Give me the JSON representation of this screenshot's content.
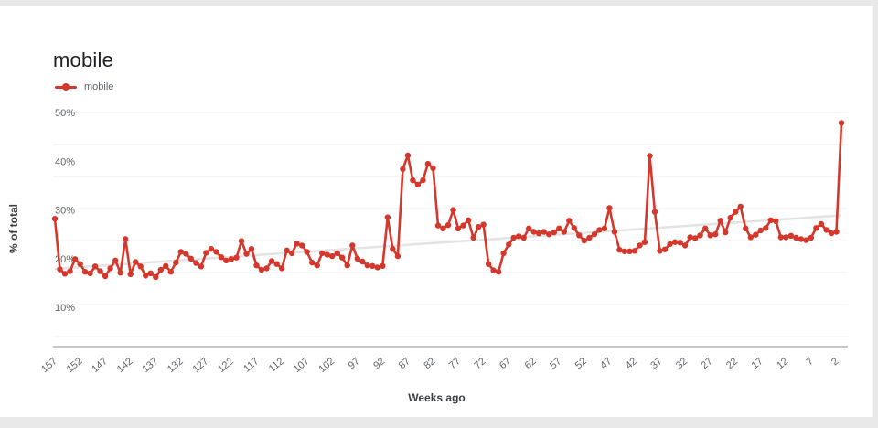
{
  "page": {
    "title": "mobile"
  },
  "legend": {
    "label": "mobile"
  },
  "axes": {
    "y_title": "% of total",
    "x_title": "Weeks ago"
  },
  "chart_data": {
    "type": "line",
    "title": "mobile",
    "series_name": "mobile",
    "xlabel": "Weeks ago",
    "ylabel": "% of total",
    "x_unit": "weeks ago, descending left to right",
    "x_start": 157,
    "x_end": 1,
    "x_tick_labels": [
      157,
      152,
      147,
      142,
      137,
      132,
      127,
      122,
      117,
      112,
      107,
      102,
      97,
      92,
      87,
      82,
      77,
      72,
      67,
      62,
      57,
      52,
      47,
      42,
      37,
      32,
      27,
      22,
      17,
      12,
      7,
      2
    ],
    "y_ticks": [
      10,
      20,
      30,
      40,
      50
    ],
    "y_tick_suffix": "%",
    "ylim": [
      2.5,
      52
    ],
    "grid": true,
    "legend_position": "top-left",
    "values": [
      28.2,
      17.8,
      16.9,
      17.4,
      19.9,
      18.9,
      17.3,
      17.0,
      18.4,
      17.4,
      16.4,
      18.0,
      19.6,
      17.1,
      24.0,
      16.8,
      19.3,
      18.4,
      16.5,
      17.0,
      16.2,
      17.7,
      18.5,
      17.3,
      19.2,
      21.4,
      21.0,
      20.0,
      19.1,
      18.4,
      21.2,
      22.0,
      21.4,
      20.3,
      19.6,
      19.9,
      20.2,
      23.6,
      21.0,
      22.0,
      18.6,
      17.7,
      18.0,
      19.5,
      18.9,
      18.0,
      21.7,
      21.1,
      23.1,
      22.7,
      21.4,
      19.2,
      18.6,
      21.1,
      20.8,
      20.5,
      21.1,
      20.2,
      18.6,
      22.7,
      20.0,
      19.4,
      18.6,
      18.5,
      18.2,
      18.5,
      28.5,
      22.0,
      20.5,
      38.4,
      41.2,
      36.1,
      35.2,
      36.1,
      39.5,
      38.6,
      26.8,
      26.2,
      26.9,
      30.0,
      26.2,
      26.8,
      27.9,
      24.3,
      26.5,
      27.0,
      18.9,
      17.6,
      17.3,
      21.1,
      22.9,
      24.3,
      24.6,
      24.3,
      26.2,
      25.5,
      25.2,
      25.5,
      25.0,
      25.4,
      26.2,
      25.5,
      27.8,
      26.3,
      24.8,
      23.7,
      24.3,
      25.0,
      25.9,
      26.2,
      30.4,
      25.5,
      21.8,
      21.5,
      21.5,
      21.6,
      22.7,
      23.4,
      41.1,
      29.6,
      21.6,
      21.9,
      23.0,
      23.4,
      23.3,
      22.7,
      24.4,
      24.2,
      24.8,
      26.2,
      24.8,
      25.0,
      27.8,
      25.4,
      28.4,
      29.6,
      30.7,
      26.2,
      24.4,
      24.9,
      25.8,
      26.3,
      27.9,
      27.7,
      24.4,
      24.4,
      24.7,
      24.3,
      24.0,
      23.8,
      24.3,
      26.3,
      27.1,
      25.9,
      25.2,
      25.5,
      47.9
    ],
    "trend_line": {
      "start_pct": 17.9,
      "end_pct": 28.9
    },
    "colors": {
      "line": "#d4372b",
      "trend": "#e3e3e3",
      "grid": "#eeeeee",
      "axis": "#8f8f8f",
      "tick_text": "#5f6368"
    }
  }
}
